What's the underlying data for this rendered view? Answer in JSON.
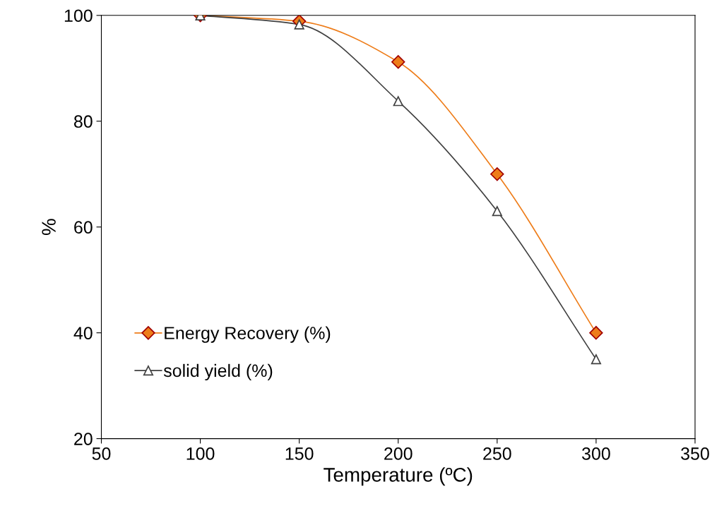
{
  "chart_data": {
    "type": "line",
    "xlabel": "Temperature (ºC)",
    "ylabel": "%",
    "x": [
      100,
      150,
      200,
      250,
      300
    ],
    "series": [
      {
        "name": "Energy Recovery (%)",
        "color": "#ee7d1a",
        "marker": "diamond",
        "values": [
          100,
          98.9,
          91.2,
          70,
          40
        ]
      },
      {
        "name": "solid yield (%)",
        "color": "#404040",
        "marker": "triangle",
        "values": [
          100,
          98.3,
          83.8,
          63,
          35
        ]
      }
    ],
    "xlim": [
      50,
      350
    ],
    "xticks": [
      50,
      100,
      150,
      200,
      250,
      300,
      350
    ],
    "ylim": [
      20,
      100
    ],
    "yticks": [
      20,
      40,
      60,
      80,
      100
    ],
    "grid": false,
    "legend": "bottom left",
    "line_style": "solid"
  }
}
